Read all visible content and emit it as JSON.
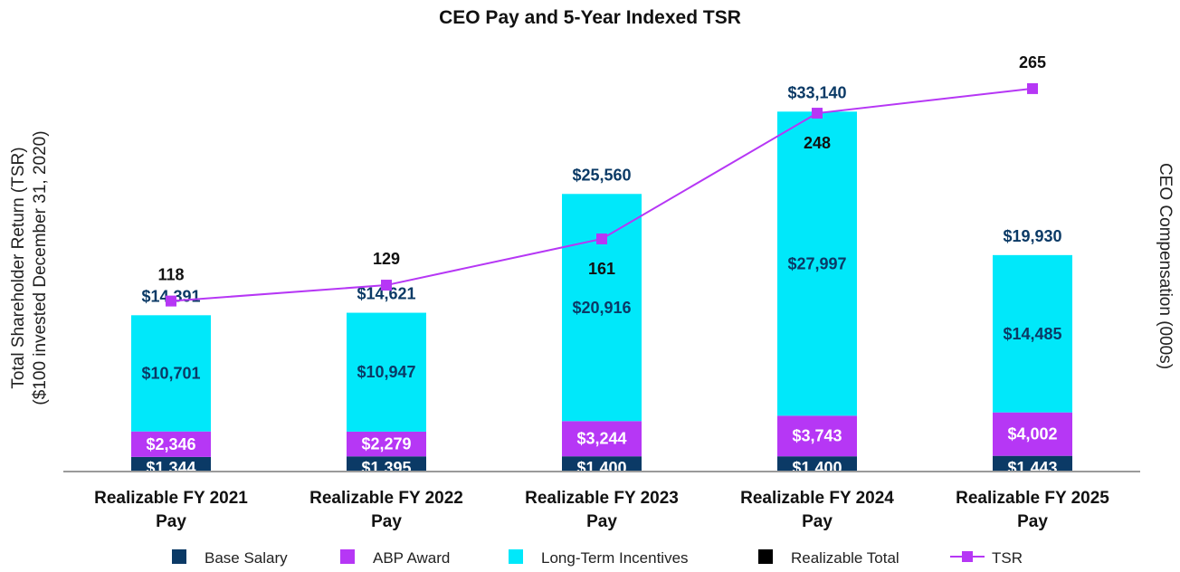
{
  "chart_data": {
    "type": "bar",
    "stacked": true,
    "title": "CEO Pay and 5-Year Indexed TSR",
    "left_axis_label": [
      "Total Shareholder Return (TSR)",
      "($100 invested December 31, 2020)"
    ],
    "right_axis_label": "CEO Compensation (000s)",
    "categories": [
      [
        "Realizable FY 2021",
        "Pay"
      ],
      [
        "Realizable FY 2022",
        "Pay"
      ],
      [
        "Realizable FY 2023",
        "Pay"
      ],
      [
        "Realizable FY 2024",
        "Pay"
      ],
      [
        "Realizable FY 2025",
        "Pay"
      ]
    ],
    "series": [
      {
        "name": "Base Salary",
        "color": "#0b3a66",
        "label_color": "#ffffff",
        "values": [
          1344,
          1395,
          1400,
          1400,
          1443
        ],
        "labels": [
          "$1,344",
          "$1,395",
          "$1,400",
          "$1,400",
          "$1,443"
        ]
      },
      {
        "name": "ABP Award",
        "color": "#b637f5",
        "label_color": "#ffffff",
        "values": [
          2346,
          2279,
          3244,
          3743,
          4002
        ],
        "labels": [
          "$2,346",
          "$2,279",
          "$3,244",
          "$3,743",
          "$4,002"
        ]
      },
      {
        "name": "Long-Term Incentives",
        "color": "#00e8fa",
        "label_color": "#0b3a66",
        "values": [
          10701,
          10947,
          20916,
          27997,
          14485
        ],
        "labels": [
          "$10,701",
          "$10,947",
          "$20,916",
          "$27,997",
          "$14,485"
        ]
      }
    ],
    "totals": {
      "name": "Realizable Total",
      "color": "#000000",
      "values": [
        14391,
        14621,
        25560,
        33140,
        19930
      ],
      "labels": [
        "$14,391",
        "$14,621",
        "$25,560",
        "$33,140",
        "$19,930"
      ]
    },
    "line": {
      "name": "TSR",
      "color": "#b637f5",
      "values": [
        118,
        129,
        161,
        248,
        265
      ],
      "labels": [
        "118",
        "129",
        "161",
        "248",
        "265"
      ]
    },
    "comp_axis_max": 40000,
    "tsr_axis_range": [
      0,
      290
    ],
    "grid": false,
    "legend_position": "bottom"
  }
}
